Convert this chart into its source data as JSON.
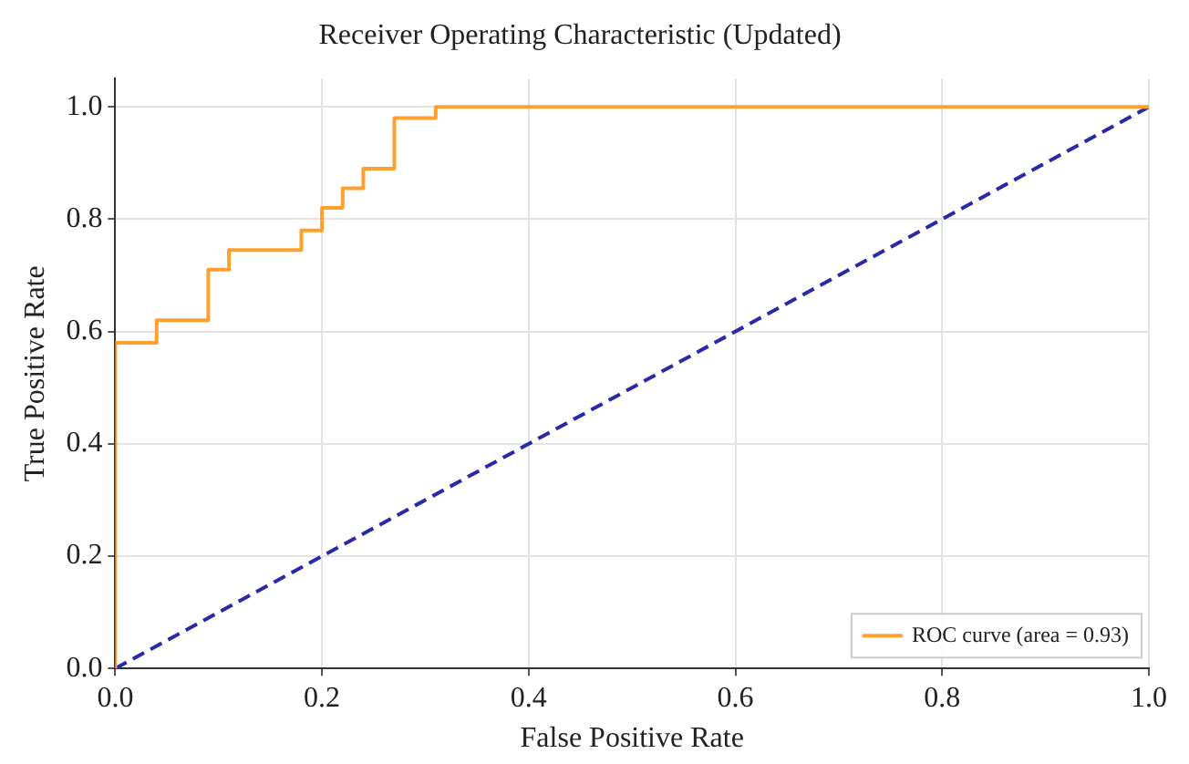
{
  "chart_data": {
    "type": "step",
    "title": "Receiver Operating Characteristic (Updated)",
    "xlabel": "False Positive Rate",
    "ylabel": "True Positive Rate",
    "xlim": [
      0,
      1
    ],
    "ylim": [
      0,
      1.05
    ],
    "xticks": [
      {
        "value": 0,
        "label": "0.0"
      },
      0.2,
      0.4,
      0.6,
      0.8,
      {
        "value": 1,
        "label": "1.0"
      }
    ],
    "yticks": [
      {
        "value": 0,
        "label": "0.0"
      },
      0.2,
      0.4,
      0.6,
      0.8,
      {
        "value": 1,
        "label": "1.0"
      }
    ],
    "grid": true,
    "legend": "bottom right",
    "marker": "none",
    "series": [
      {
        "name": "ROC curve (area = 0.93)",
        "type": "step",
        "color": "#ffa02e",
        "line_style": "solid",
        "x": [
          0,
          0,
          0.04,
          0.09,
          0.11,
          0.18,
          0.2,
          0.22,
          0.24,
          0.27,
          0.31,
          1
        ],
        "values": [
          0,
          0.58,
          0.62,
          0.71,
          0.745,
          0.78,
          0.82,
          0.855,
          0.89,
          0.98,
          1,
          1
        ]
      },
      {
        "type": "line",
        "color": "#2a2aa8",
        "line_style": "dashed",
        "x": [
          0,
          1
        ],
        "values": [
          0,
          1
        ]
      }
    ]
  }
}
